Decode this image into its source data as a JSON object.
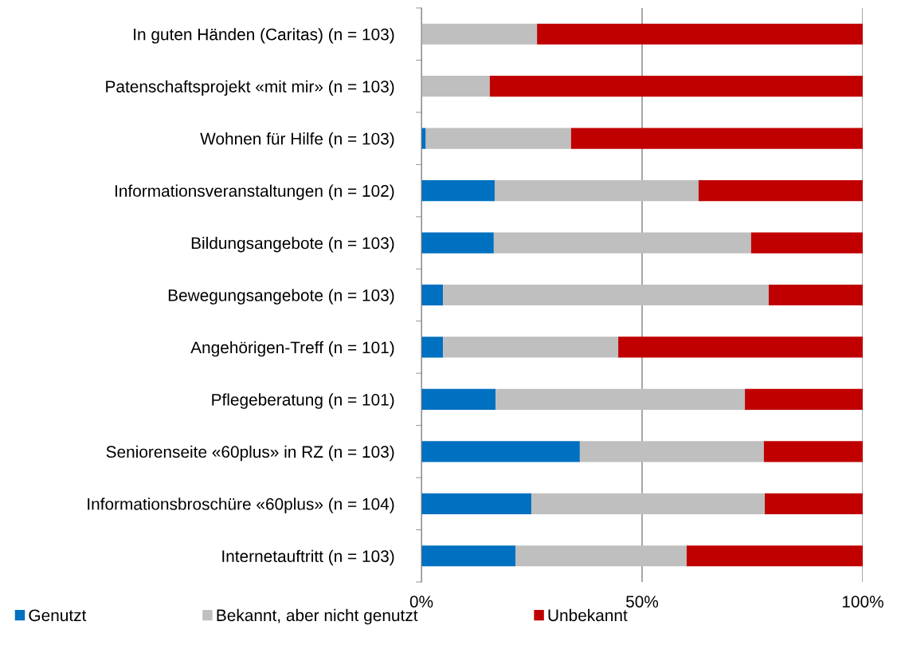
{
  "chart_data": {
    "type": "bar",
    "orientation": "horizontal",
    "stacked": true,
    "categories": [
      "In guten Händen (Caritas) (n = 103)",
      "Patenschaftsprojekt «mit mir» (n = 103)",
      "Wohnen für Hilfe (n = 103)",
      "Informationsveranstaltungen (n = 102)",
      "Bildungsangebote (n = 103)",
      "Bewegungsangebote (n = 103)",
      "Angehörigen-Treff (n = 101)",
      "Pflegeberatung (n = 101)",
      "Seniorenseite «60plus» in RZ (n = 103)",
      "Informationsbroschüre «60plus» (n = 104)",
      "Internetauftritt (n = 103)"
    ],
    "series": [
      {
        "name": "Genutzt",
        "color": "#0070c0",
        "values": [
          0,
          0,
          1.0,
          16.6,
          16.4,
          4.9,
          4.9,
          16.8,
          35.9,
          24.9,
          21.3
        ]
      },
      {
        "name": "Bekannt, aber nicht genutzt",
        "color": "#bfbfbf",
        "values": [
          26.2,
          15.5,
          32.9,
          46.2,
          58.3,
          73.8,
          39.7,
          56.5,
          41.7,
          52.9,
          38.8
        ]
      },
      {
        "name": "Unbekannt",
        "color": "#c00000",
        "values": [
          73.8,
          84.5,
          66.1,
          37.2,
          25.3,
          21.3,
          55.4,
          26.7,
          22.4,
          22.2,
          39.9
        ]
      }
    ],
    "xlim": [
      0,
      100
    ],
    "xticks": [
      {
        "value": 0,
        "label": "0%"
      },
      {
        "value": 50,
        "label": "50%"
      },
      {
        "value": 100,
        "label": "100%"
      }
    ],
    "grid": "x",
    "legend": "bottom"
  }
}
